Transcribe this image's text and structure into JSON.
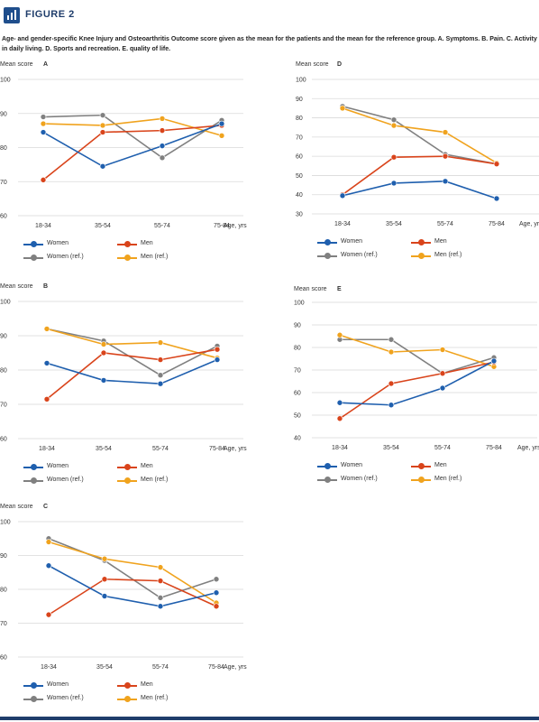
{
  "figure": {
    "title": "FIGURE 2",
    "caption": "Age- and gender-specific Knee Injury and Osteoarthritis Outcome score given as the mean for the patients and the mean for the reference group. A. Symptoms. B. Pain. C. Activity in daily living. D. Sports and recreation. E. quality of life."
  },
  "colors": {
    "women": "#1f5fae",
    "men": "#d9441b",
    "women_ref": "#808080",
    "men_ref": "#f0a31e",
    "grid": "#d9d9d9"
  },
  "chart_data": [
    {
      "type": "line",
      "panel": "A",
      "ylabel": "Mean score",
      "xlabel": "Age, yrs",
      "categories": [
        "18-34",
        "35-54",
        "55-74",
        "75-84"
      ],
      "ylim": [
        60,
        100
      ],
      "yticks": [
        60,
        70,
        80,
        90,
        100
      ],
      "grid": true,
      "series": [
        {
          "name": "Women",
          "color": "#1f5fae",
          "values": [
            84.5,
            74.5,
            80.5,
            87
          ]
        },
        {
          "name": "Men",
          "color": "#d9441b",
          "values": [
            70.5,
            84.5,
            85,
            86.5
          ]
        },
        {
          "name": "Women (ref.)",
          "color": "#808080",
          "values": [
            89,
            89.5,
            77,
            88
          ]
        },
        {
          "name": "Men (ref.)",
          "color": "#f0a31e",
          "values": [
            87,
            86.5,
            88.5,
            83.5
          ]
        }
      ]
    },
    {
      "type": "line",
      "panel": "B",
      "ylabel": "Mean score",
      "xlabel": "Age, yrs",
      "categories": [
        "18-34",
        "35-54",
        "55-74",
        "75-84"
      ],
      "ylim": [
        60,
        100
      ],
      "yticks": [
        60,
        70,
        80,
        90,
        100
      ],
      "grid": true,
      "series": [
        {
          "name": "Women",
          "color": "#1f5fae",
          "values": [
            82,
            77,
            76,
            83
          ]
        },
        {
          "name": "Men",
          "color": "#d9441b",
          "values": [
            71.5,
            85,
            83,
            86
          ]
        },
        {
          "name": "Women (ref.)",
          "color": "#808080",
          "values": [
            92,
            88.5,
            78.5,
            87
          ]
        },
        {
          "name": "Men (ref.)",
          "color": "#f0a31e",
          "values": [
            92,
            87.5,
            88,
            83.5
          ]
        }
      ]
    },
    {
      "type": "line",
      "panel": "C",
      "ylabel": "Mean score",
      "xlabel": "Age, yrs",
      "categories": [
        "18-34",
        "35-54",
        "55-74",
        "75-84"
      ],
      "ylim": [
        60,
        100
      ],
      "yticks": [
        60,
        70,
        80,
        90,
        100
      ],
      "grid": true,
      "series": [
        {
          "name": "Women",
          "color": "#1f5fae",
          "values": [
            87,
            78,
            75,
            79
          ]
        },
        {
          "name": "Men",
          "color": "#d9441b",
          "values": [
            72.5,
            83,
            82.5,
            75
          ]
        },
        {
          "name": "Women (ref.)",
          "color": "#808080",
          "values": [
            95,
            88.5,
            77.5,
            83
          ]
        },
        {
          "name": "Men (ref.)",
          "color": "#f0a31e",
          "values": [
            94,
            89,
            86.5,
            76
          ]
        }
      ]
    },
    {
      "type": "line",
      "panel": "D",
      "ylabel": "Mean score",
      "xlabel": "Age, yrs",
      "categories": [
        "18-34",
        "35-54",
        "55-74",
        "75-84"
      ],
      "ylim": [
        30,
        100
      ],
      "yticks": [
        30,
        40,
        50,
        60,
        70,
        80,
        90,
        100
      ],
      "grid": true,
      "series": [
        {
          "name": "Women",
          "color": "#1f5fae",
          "values": [
            39.5,
            46,
            47,
            38
          ]
        },
        {
          "name": "Men",
          "color": "#d9441b",
          "values": [
            40,
            59.5,
            60,
            56
          ]
        },
        {
          "name": "Women (ref.)",
          "color": "#808080",
          "values": [
            86,
            79,
            61,
            56
          ]
        },
        {
          "name": "Men (ref.)",
          "color": "#f0a31e",
          "values": [
            85,
            76,
            72.5,
            56.5
          ]
        }
      ]
    },
    {
      "type": "line",
      "panel": "E",
      "ylabel": "Mean score",
      "xlabel": "Age, yrs",
      "categories": [
        "18-34",
        "35-54",
        "55-74",
        "75-84"
      ],
      "ylim": [
        40,
        100
      ],
      "yticks": [
        40,
        50,
        60,
        70,
        80,
        90,
        100
      ],
      "grid": true,
      "series": [
        {
          "name": "Women",
          "color": "#1f5fae",
          "values": [
            55.5,
            54.5,
            62,
            74
          ]
        },
        {
          "name": "Men",
          "color": "#d9441b",
          "values": [
            48.5,
            64,
            68.5,
            73.5
          ]
        },
        {
          "name": "Women (ref.)",
          "color": "#808080",
          "values": [
            83.5,
            83.5,
            68.5,
            75.5
          ]
        },
        {
          "name": "Men (ref.)",
          "color": "#f0a31e",
          "values": [
            85.5,
            78,
            79,
            71.5
          ]
        }
      ]
    }
  ]
}
